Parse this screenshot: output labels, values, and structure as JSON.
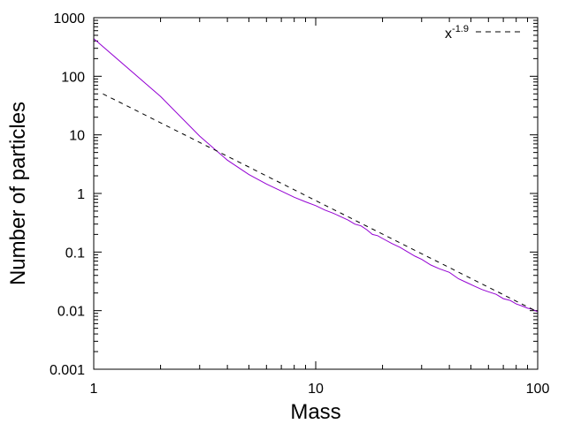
{
  "chart_data": {
    "type": "line",
    "title": "",
    "xlabel": "Mass",
    "ylabel": "Number of particles",
    "xscale": "log",
    "yscale": "log",
    "xlim": [
      1,
      100
    ],
    "ylim": [
      0.001,
      1000
    ],
    "x_ticks": [
      "1",
      "10",
      "100"
    ],
    "y_ticks": [
      "0.001",
      "0.01",
      "0.1",
      "1",
      "10",
      "100",
      "1000"
    ],
    "grid": false,
    "legend_position": "top-right",
    "series": [
      {
        "color": "#9400d3",
        "style": "solid",
        "x": [
          1,
          2,
          3,
          4,
          5,
          6,
          7,
          8,
          9,
          10,
          11,
          12,
          13,
          14,
          15,
          16,
          17,
          18,
          19,
          20,
          22,
          24,
          26,
          28,
          30,
          33,
          36,
          40,
          44,
          48,
          52,
          56,
          60,
          65,
          70,
          75,
          80,
          85,
          90,
          95,
          100
        ],
        "values": [
          440,
          45,
          9.5,
          3.7,
          2.1,
          1.45,
          1.1,
          0.86,
          0.72,
          0.62,
          0.52,
          0.46,
          0.4,
          0.35,
          0.3,
          0.28,
          0.24,
          0.2,
          0.19,
          0.17,
          0.14,
          0.12,
          0.1,
          0.085,
          0.075,
          0.06,
          0.052,
          0.045,
          0.035,
          0.03,
          0.026,
          0.023,
          0.021,
          0.019,
          0.016,
          0.015,
          0.013,
          0.012,
          0.011,
          0.0105,
          0.0095
        ]
      },
      {
        "name": "x^{-1.9}",
        "label_base": "x",
        "label_exp": "-1.9",
        "color": "#000000",
        "style": "dashed",
        "function": "power",
        "coefficient": 60,
        "exponent": -1.9,
        "x_range": [
          1.1,
          100
        ]
      }
    ]
  }
}
